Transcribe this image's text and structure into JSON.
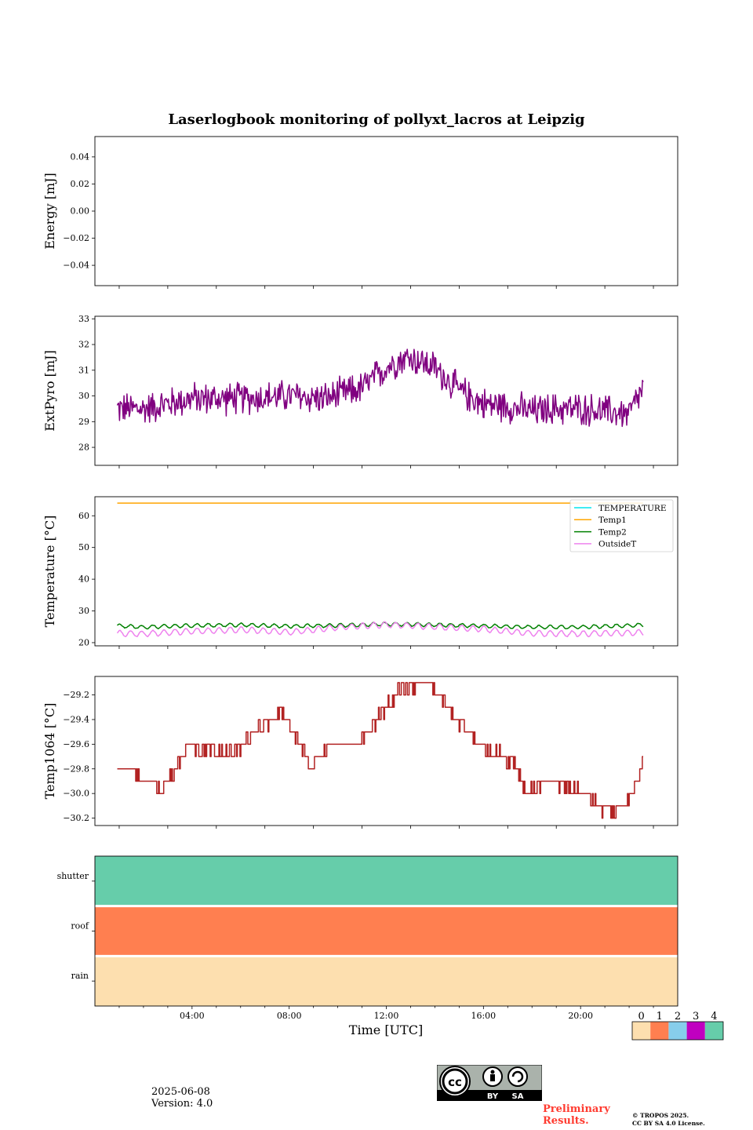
{
  "title": "Laserlogbook monitoring of pollyxt_lacros at Leipzig",
  "xlabel": "Time [UTC]",
  "footer": {
    "date": "2025-06-08",
    "version": "Version: 4.0",
    "preliminary_line1": "Preliminary",
    "preliminary_line2": "Results.",
    "copyright_line1": "© TROPOS 2025.",
    "copyright_line2": "CC BY SA 4.0 License.",
    "license_badge": {
      "by": "BY",
      "sa": "SA"
    }
  },
  "colors": {
    "extpyro": "#800080",
    "temperature": "#00e5ee",
    "temp1": "#ffa500",
    "temp2": "#008000",
    "outsideT": "#ee82ee",
    "temp1064": "#b22222",
    "status": [
      "#fddfaf",
      "#ff7f50",
      "#87ceeb",
      "#c000c0",
      "#66cdaa"
    ],
    "preliminary": "#ff3b30"
  },
  "chart_data": [
    {
      "id": "energy",
      "type": "line",
      "ylabel": "Energy [mJ]",
      "ylim": [
        -0.055,
        0.055
      ],
      "yticks": [
        0.04,
        0.02,
        0.0,
        -0.02,
        -0.04
      ],
      "ytick_labels": [
        "0.04",
        "0.02",
        "0.00",
        "−0.02",
        "−0.04"
      ],
      "series": []
    },
    {
      "id": "extpyro",
      "type": "line",
      "ylabel": "ExtPyro [mJ]",
      "ylim": [
        27.3,
        33.1
      ],
      "yticks": [
        28,
        29,
        30,
        31,
        32,
        33
      ],
      "ytick_labels": [
        "28",
        "29",
        "30",
        "31",
        "32",
        "33"
      ],
      "series": [
        {
          "color": "#800080",
          "style": "noisy",
          "noise": 0.75,
          "t": [
            0.92,
            2,
            4,
            6,
            8,
            9.5,
            11,
            12,
            12.5,
            13,
            14,
            15,
            16,
            17,
            18,
            19,
            20,
            21,
            22,
            22.58
          ],
          "values": [
            29.5,
            29.5,
            29.9,
            29.9,
            30.0,
            29.9,
            30.3,
            31.1,
            31.4,
            31.5,
            31.1,
            30.2,
            29.7,
            29.6,
            29.4,
            29.5,
            29.5,
            29.4,
            29.3,
            30.3
          ]
        }
      ]
    },
    {
      "id": "temperatures",
      "type": "line",
      "ylabel": "Temperature [°C]",
      "ylim": [
        19,
        66
      ],
      "yticks": [
        20,
        30,
        40,
        50,
        60
      ],
      "ytick_labels": [
        "20",
        "30",
        "40",
        "50",
        "60"
      ],
      "legend": [
        "TEMPERATURE",
        "Temp1",
        "Temp2",
        "OutsideT"
      ],
      "legend_position": "upper right",
      "series": [
        {
          "name": "TEMPERATURE",
          "color": "#00e5ee",
          "style": "empty",
          "t": [],
          "values": []
        },
        {
          "name": "Temp1",
          "color": "#ffa500",
          "style": "smooth",
          "t": [
            0.92,
            22.58
          ],
          "values": [
            64,
            64
          ]
        },
        {
          "name": "Temp2",
          "color": "#008000",
          "style": "wavy",
          "amp": 0.55,
          "t": [
            0.92,
            2,
            4,
            6,
            8,
            10,
            12,
            14,
            16,
            18,
            20,
            22,
            22.58
          ],
          "values": [
            25.3,
            24.9,
            25.4,
            25.6,
            25.2,
            25.4,
            25.9,
            25.6,
            25.3,
            24.9,
            24.9,
            25.4,
            25.6
          ]
        },
        {
          "name": "OutsideT",
          "color": "#ee82ee",
          "style": "wavy",
          "amp": 0.9,
          "t": [
            0.92,
            2,
            4,
            6,
            8,
            10,
            12,
            14,
            16,
            18,
            20,
            22,
            22.58
          ],
          "values": [
            22.9,
            22.8,
            23.6,
            24.1,
            23.3,
            24.8,
            25.7,
            25.0,
            24.3,
            22.9,
            22.8,
            23.1,
            23.2
          ]
        }
      ]
    },
    {
      "id": "temp1064",
      "type": "line",
      "ylabel": "Temp1064 [°C]",
      "ylim": [
        -30.26,
        -29.05
      ],
      "yticks": [
        -29.2,
        -29.4,
        -29.6,
        -29.8,
        -30.0,
        -30.2
      ],
      "ytick_labels": [
        "−29.2",
        "−29.4",
        "−29.6",
        "−29.8",
        "−30.0",
        "−30.2"
      ],
      "series": [
        {
          "color": "#b22222",
          "style": "step",
          "step": 0.1,
          "t": [
            0.92,
            1.5,
            1.85,
            2.3,
            2.7,
            3.0,
            3.4,
            3.9,
            4.5,
            5.5,
            6.0,
            6.6,
            7.3,
            7.8,
            8.4,
            8.9,
            9.7,
            10.6,
            11.2,
            11.8,
            12.4,
            12.8,
            13.8,
            14.3,
            14.8,
            15.4,
            15.8,
            16.6,
            17.3,
            17.8,
            18.5,
            19.3,
            20.2,
            20.8,
            21.4,
            21.9,
            22.3,
            22.58
          ],
          "values": [
            -29.8,
            -29.8,
            -29.9,
            -29.9,
            -30.0,
            -29.9,
            -29.75,
            -29.6,
            -29.65,
            -29.68,
            -29.62,
            -29.5,
            -29.4,
            -29.35,
            -29.6,
            -29.8,
            -29.6,
            -29.6,
            -29.5,
            -29.35,
            -29.2,
            -29.12,
            -29.12,
            -29.25,
            -29.4,
            -29.5,
            -29.6,
            -29.68,
            -29.75,
            -30.0,
            -29.9,
            -29.95,
            -30.0,
            -30.1,
            -30.15,
            -30.1,
            -29.9,
            -29.7
          ]
        }
      ]
    },
    {
      "id": "status",
      "type": "heatmap",
      "rows": [
        "shutter",
        "roof",
        "rain"
      ],
      "row_values": [
        4,
        1,
        0
      ],
      "x": [
        "04:00",
        "08:00",
        "12:00",
        "16:00",
        "20:00"
      ],
      "xticks_hours": [
        4,
        8,
        12,
        16,
        20
      ],
      "xlim_hours": [
        0,
        24
      ],
      "colorbar": {
        "ticks": [
          "0",
          "1",
          "2",
          "3",
          "4"
        ],
        "colors": [
          "#fddfaf",
          "#ff7f50",
          "#87ceeb",
          "#c000c0",
          "#66cdaa"
        ]
      }
    }
  ]
}
